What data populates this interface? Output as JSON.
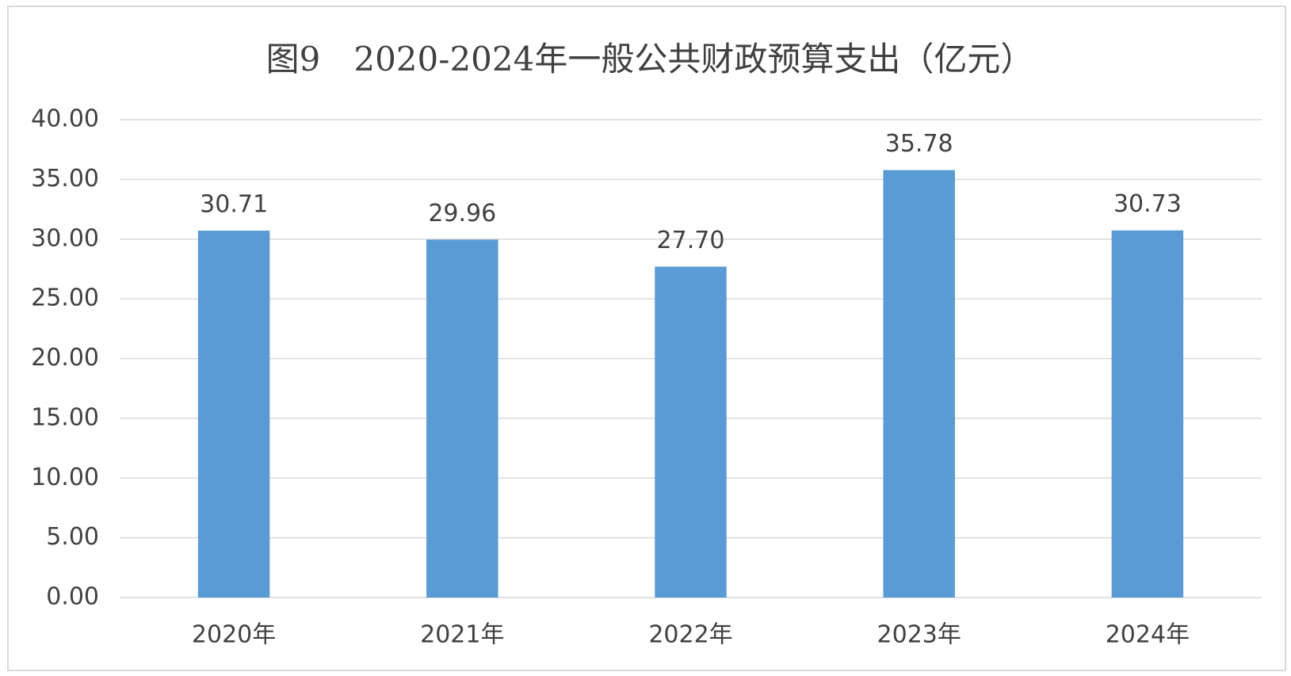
{
  "chart_data": {
    "type": "bar",
    "title": "图9　2020-2024年一般公共财政预算支出（亿元）",
    "categories": [
      "2020年",
      "2021年",
      "2022年",
      "2023年",
      "2024年"
    ],
    "values": [
      30.71,
      29.96,
      27.7,
      35.78,
      30.73
    ],
    "value_labels": [
      "30.71",
      "29.96",
      "27.70",
      "35.78",
      "30.73"
    ],
    "color": "#5b9bd5",
    "ylim": [
      0,
      40
    ],
    "yticks": [
      {
        "value": 0,
        "label": "0.00"
      },
      {
        "value": 5,
        "label": "5.00"
      },
      {
        "value": 10,
        "label": "10.00"
      },
      {
        "value": 15,
        "label": "15.00"
      },
      {
        "value": 20,
        "label": "20.00"
      },
      {
        "value": 25,
        "label": "25.00"
      },
      {
        "value": 30,
        "label": "30.00"
      },
      {
        "value": 35,
        "label": "35.00"
      },
      {
        "value": 40,
        "label": "40.00"
      }
    ],
    "grid": true
  }
}
